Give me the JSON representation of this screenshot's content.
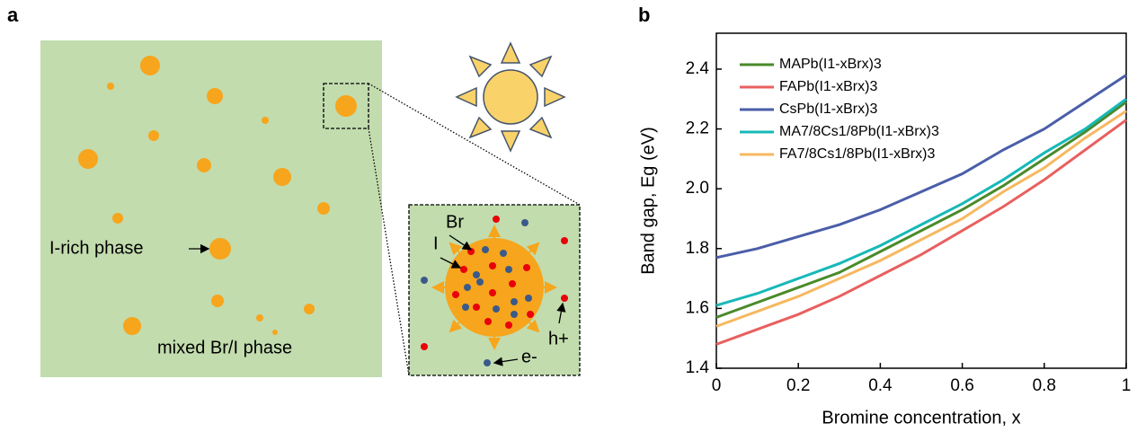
{
  "panel_labels": [
    "a",
    "b"
  ],
  "panel_a": {
    "i_rich_label": "I-rich phase",
    "mixed_label": "mixed Br/I phase",
    "br_label": "Br",
    "i_label": "I",
    "hole_label": "h+",
    "electron_label": "e-"
  },
  "chart_data": {
    "type": "line",
    "x_label": "Bromine concentration, x",
    "y_label": "Band gap, Eg (eV)",
    "x": [
      0,
      0.1,
      0.2,
      0.3,
      0.4,
      0.5,
      0.6,
      0.7,
      0.8,
      0.9,
      1
    ],
    "series": [
      {
        "name": "MAPb(I1-xBrx)3",
        "color": "#4a8a2a",
        "values": [
          1.57,
          1.62,
          1.67,
          1.72,
          1.79,
          1.86,
          1.93,
          2.01,
          2.1,
          2.19,
          2.29
        ]
      },
      {
        "name": "FAPb(I1-xBrx)3",
        "color": "#e8605f",
        "values": [
          1.48,
          1.53,
          1.58,
          1.64,
          1.71,
          1.78,
          1.86,
          1.94,
          2.03,
          2.13,
          2.23
        ]
      },
      {
        "name": "CsPb(I1-xBrx)3",
        "color": "#4a5ea8",
        "values": [
          1.77,
          1.8,
          1.84,
          1.88,
          1.93,
          1.99,
          2.05,
          2.13,
          2.2,
          2.29,
          2.38
        ]
      },
      {
        "name": "MA7/8Cs1/8Pb(I1-xBrx)3",
        "color": "#18b8b8",
        "values": [
          1.61,
          1.65,
          1.7,
          1.75,
          1.81,
          1.88,
          1.95,
          2.03,
          2.12,
          2.2,
          2.3
        ]
      },
      {
        "name": "FA7/8Cs1/8Pb(I1-xBrx)3",
        "color": "#f6b860",
        "values": [
          1.54,
          1.59,
          1.64,
          1.7,
          1.76,
          1.83,
          1.9,
          1.99,
          2.07,
          2.17,
          2.26
        ]
      }
    ],
    "xlim": [
      0,
      1
    ],
    "xticks": [
      0,
      0.2,
      0.4,
      0.6,
      0.8,
      1
    ],
    "ylim": [
      1.4,
      2.52
    ],
    "yticks": [
      1.4,
      1.6,
      1.8,
      {
        "value": 2,
        "label": "2.0"
      },
      2.2,
      2.4
    ],
    "legend": "upper-left",
    "grid": false
  }
}
